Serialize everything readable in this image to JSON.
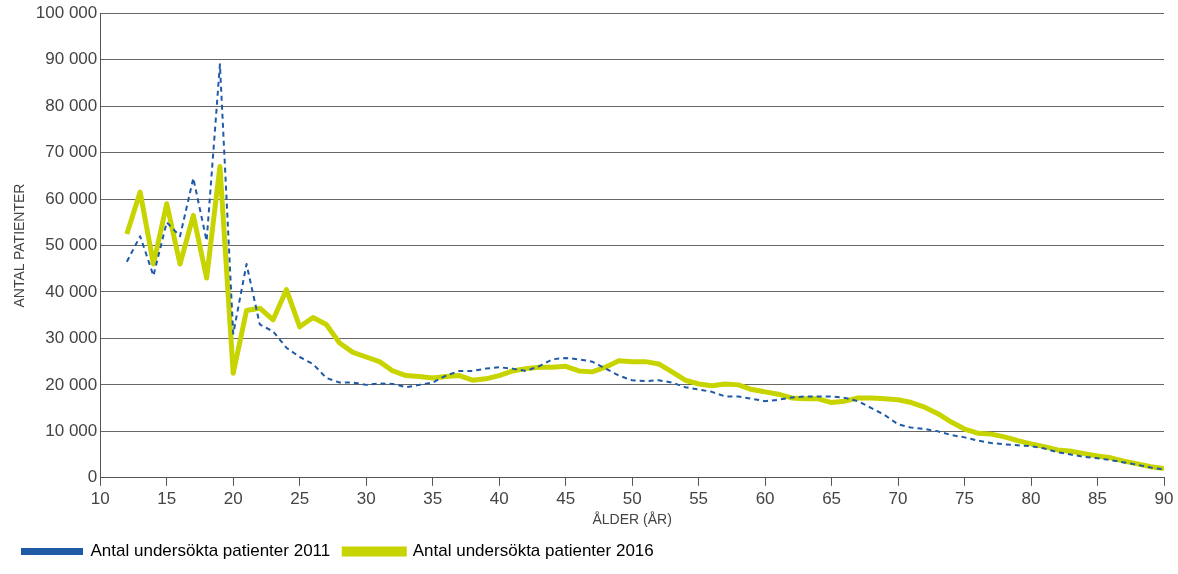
{
  "chart_data": {
    "type": "line",
    "xlabel": "ÅLDER (ÅR)",
    "ylabel": "ANTAL PATIENTER",
    "x": [
      12,
      13,
      14,
      15,
      16,
      17,
      18,
      19,
      20,
      21,
      22,
      23,
      24,
      25,
      26,
      27,
      28,
      29,
      30,
      31,
      32,
      33,
      34,
      35,
      36,
      37,
      38,
      39,
      40,
      41,
      42,
      43,
      44,
      45,
      46,
      47,
      48,
      49,
      50,
      51,
      52,
      53,
      54,
      55,
      56,
      57,
      58,
      59,
      60,
      61,
      62,
      63,
      64,
      65,
      66,
      67,
      68,
      69,
      70,
      71,
      72,
      73,
      74,
      75,
      76,
      77,
      78,
      79,
      80,
      81,
      82,
      83,
      84,
      85,
      86,
      87,
      88,
      89,
      90
    ],
    "xlim": [
      10,
      90
    ],
    "xticks": [
      10,
      15,
      20,
      25,
      30,
      35,
      40,
      45,
      50,
      55,
      60,
      65,
      70,
      75,
      80,
      85,
      90
    ],
    "ylim": [
      0,
      100000
    ],
    "yticks": [
      0,
      {
        "value": 10000,
        "label": "10 000"
      },
      {
        "value": 20000,
        "label": "20 000"
      },
      {
        "value": 30000,
        "label": "30 000"
      },
      {
        "value": 40000,
        "label": "40 000"
      },
      {
        "value": 50000,
        "label": "50 000"
      },
      {
        "value": 60000,
        "label": "60 000"
      },
      {
        "value": 70000,
        "label": "70 000"
      },
      {
        "value": 80000,
        "label": "80 000"
      },
      {
        "value": 90000,
        "label": "90 000"
      },
      {
        "value": 100000,
        "label": "100 000"
      }
    ],
    "grid": "y",
    "legend": "bottom left",
    "marker": "none",
    "series": [
      {
        "name": "Antal undersökta patienter 2011",
        "color": "#1f5aa6",
        "line_style": "dashed",
        "values": [
          46500,
          52000,
          43500,
          55000,
          52000,
          64500,
          51000,
          89000,
          31000,
          46000,
          33000,
          31500,
          28000,
          26000,
          24500,
          21500,
          20500,
          20500,
          20000,
          20300,
          20200,
          19500,
          20000,
          20500,
          22000,
          23000,
          23000,
          23500,
          23800,
          23500,
          23000,
          24000,
          25500,
          25800,
          25500,
          25000,
          23500,
          22000,
          21000,
          20800,
          21000,
          20500,
          19500,
          19000,
          18500,
          17500,
          17500,
          17000,
          16500,
          16800,
          17300,
          17500,
          17500,
          17500,
          17200,
          16500,
          15000,
          13500,
          11500,
          10800,
          10500,
          10000,
          9200,
          8700,
          8000,
          7500,
          7200,
          7000,
          6800,
          6300,
          5500,
          5000,
          4500,
          4200,
          3800,
          3300,
          2800,
          2200,
          1800
        ]
      },
      {
        "name": "Antal undersökta patienter 2016",
        "color": "#c8d400",
        "line_style": "solid",
        "values": [
          52500,
          61500,
          46000,
          59000,
          46000,
          56500,
          43000,
          67000,
          22500,
          36000,
          36500,
          34000,
          40500,
          32500,
          34500,
          33000,
          29000,
          27000,
          26000,
          25000,
          23000,
          22000,
          21800,
          21500,
          21800,
          22000,
          21000,
          21300,
          22000,
          23000,
          23500,
          23800,
          23800,
          24000,
          23000,
          22800,
          23800,
          25200,
          25000,
          25000,
          24500,
          22800,
          21000,
          20200,
          19800,
          20200,
          20000,
          19000,
          18500,
          18000,
          17200,
          17000,
          17000,
          16200,
          16500,
          17200,
          17200,
          17000,
          16800,
          16200,
          15200,
          13800,
          12000,
          10500,
          9600,
          9400,
          8800,
          8000,
          7300,
          6700,
          6000,
          5700,
          5200,
          4700,
          4300,
          3600,
          3000,
          2400,
          2000
        ]
      }
    ]
  }
}
